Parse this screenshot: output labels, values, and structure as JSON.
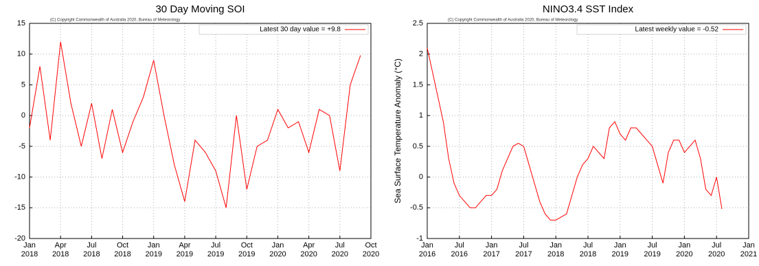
{
  "chart_data": [
    {
      "type": "line",
      "title": "30 Day Moving SOI",
      "copyright": "(C) Copyright Commonwealth of Australia 2020, Bureau of Meteorology",
      "x": [
        "2018-01",
        "2018-02",
        "2018-03",
        "2018-04",
        "2018-05",
        "2018-06",
        "2018-07",
        "2018-08",
        "2018-09",
        "2018-10",
        "2018-11",
        "2018-12",
        "2019-01",
        "2019-02",
        "2019-03",
        "2019-04",
        "2019-05",
        "2019-06",
        "2019-07",
        "2019-08",
        "2019-09",
        "2019-10",
        "2019-11",
        "2019-12",
        "2020-01",
        "2020-02",
        "2020-03",
        "2020-04",
        "2020-05",
        "2020-06",
        "2020-07",
        "2020-08",
        "2020-09"
      ],
      "series": [
        {
          "name": "Latest 30 day value = +9.8",
          "color": "#ff0000",
          "values": [
            -2,
            8,
            -4,
            12,
            2,
            -5,
            2,
            -7,
            1,
            -6,
            -1,
            3,
            9,
            0,
            -8,
            -14,
            -4,
            -6,
            -9,
            -15,
            0,
            -12,
            -5,
            -4,
            1,
            -2,
            -1,
            -6,
            1,
            0,
            -9,
            5,
            9.8
          ]
        }
      ],
      "xlim": [
        "2018-01",
        "2020-10"
      ],
      "xticks": [
        {
          "value": "2018-01",
          "label": "Jan 2018"
        },
        {
          "value": "2018-04",
          "label": "Apr 2018"
        },
        {
          "value": "2018-07",
          "label": "Jul 2018"
        },
        {
          "value": "2018-10",
          "label": "Oct 2018"
        },
        {
          "value": "2019-01",
          "label": "Jan 2019"
        },
        {
          "value": "2019-04",
          "label": "Apr 2019"
        },
        {
          "value": "2019-07",
          "label": "Jul 2019"
        },
        {
          "value": "2019-10",
          "label": "Oct 2019"
        },
        {
          "value": "2020-01",
          "label": "Jan 2020"
        },
        {
          "value": "2020-04",
          "label": "Apr 2020"
        },
        {
          "value": "2020-07",
          "label": "Jul 2020"
        },
        {
          "value": "2020-10",
          "label": "Oct 2020"
        }
      ],
      "ylim": [
        -20,
        15
      ],
      "yticks": [
        -20,
        -15,
        -10,
        -5,
        0,
        5,
        10,
        15
      ],
      "grid": true,
      "legend": "upper right"
    },
    {
      "type": "line",
      "title": "NINO3.4 SST Index",
      "copyright": "(C) Copyright Commonwealth of Australia 2020, Bureau of Meteorology",
      "y_label": "Sea Surface Temperature Anomaly (°C)",
      "x": [
        "2016-01",
        "2016-02",
        "2016-03",
        "2016-04",
        "2016-05",
        "2016-06",
        "2016-07",
        "2016-08",
        "2016-09",
        "2016-10",
        "2016-11",
        "2016-12",
        "2017-01",
        "2017-02",
        "2017-03",
        "2017-04",
        "2017-05",
        "2017-06",
        "2017-07",
        "2017-08",
        "2017-09",
        "2017-10",
        "2017-11",
        "2017-12",
        "2018-01",
        "2018-02",
        "2018-03",
        "2018-04",
        "2018-05",
        "2018-06",
        "2018-07",
        "2018-08",
        "2018-09",
        "2018-10",
        "2018-11",
        "2018-12",
        "2019-01",
        "2019-02",
        "2019-03",
        "2019-04",
        "2019-05",
        "2019-06",
        "2019-07",
        "2019-08",
        "2019-09",
        "2019-10",
        "2019-11",
        "2019-12",
        "2020-01",
        "2020-02",
        "2020-03",
        "2020-04",
        "2020-05",
        "2020-06",
        "2020-07",
        "2020-08"
      ],
      "series": [
        {
          "name": "Latest weekly value = -0.52",
          "color": "#ff0000",
          "values": [
            2.1,
            1.7,
            1.3,
            0.9,
            0.3,
            -0.1,
            -0.3,
            -0.4,
            -0.5,
            -0.5,
            -0.4,
            -0.3,
            -0.3,
            -0.2,
            0.1,
            0.3,
            0.5,
            0.55,
            0.5,
            0.2,
            -0.1,
            -0.4,
            -0.6,
            -0.7,
            -0.7,
            -0.65,
            -0.6,
            -0.3,
            0.0,
            0.2,
            0.3,
            0.5,
            0.4,
            0.3,
            0.8,
            0.9,
            0.7,
            0.6,
            0.8,
            0.8,
            0.7,
            0.6,
            0.5,
            0.2,
            -0.1,
            0.4,
            0.6,
            0.6,
            0.4,
            0.5,
            0.6,
            0.3,
            -0.2,
            -0.3,
            0.0,
            -0.52
          ]
        }
      ],
      "xlim": [
        "2016-01",
        "2021-01"
      ],
      "xticks": [
        {
          "value": "2016-01",
          "label": "Jan 2016"
        },
        {
          "value": "2016-07",
          "label": "Jul 2016"
        },
        {
          "value": "2017-01",
          "label": "Jan 2017"
        },
        {
          "value": "2017-07",
          "label": "Jul 2017"
        },
        {
          "value": "2018-01",
          "label": "Jan 2018"
        },
        {
          "value": "2018-07",
          "label": "Jul 2018"
        },
        {
          "value": "2019-01",
          "label": "Jan 2019"
        },
        {
          "value": "2019-07",
          "label": "Jul 2019"
        },
        {
          "value": "2020-01",
          "label": "Jan 2020"
        },
        {
          "value": "2020-07",
          "label": "Jul 2020"
        },
        {
          "value": "2021-01",
          "label": "Jan 2021"
        }
      ],
      "ylim": [
        -1,
        2.5
      ],
      "yticks": [
        -1,
        -0.5,
        0,
        0.5,
        1,
        1.5,
        2,
        2.5
      ],
      "grid": true,
      "legend": "upper right"
    }
  ]
}
